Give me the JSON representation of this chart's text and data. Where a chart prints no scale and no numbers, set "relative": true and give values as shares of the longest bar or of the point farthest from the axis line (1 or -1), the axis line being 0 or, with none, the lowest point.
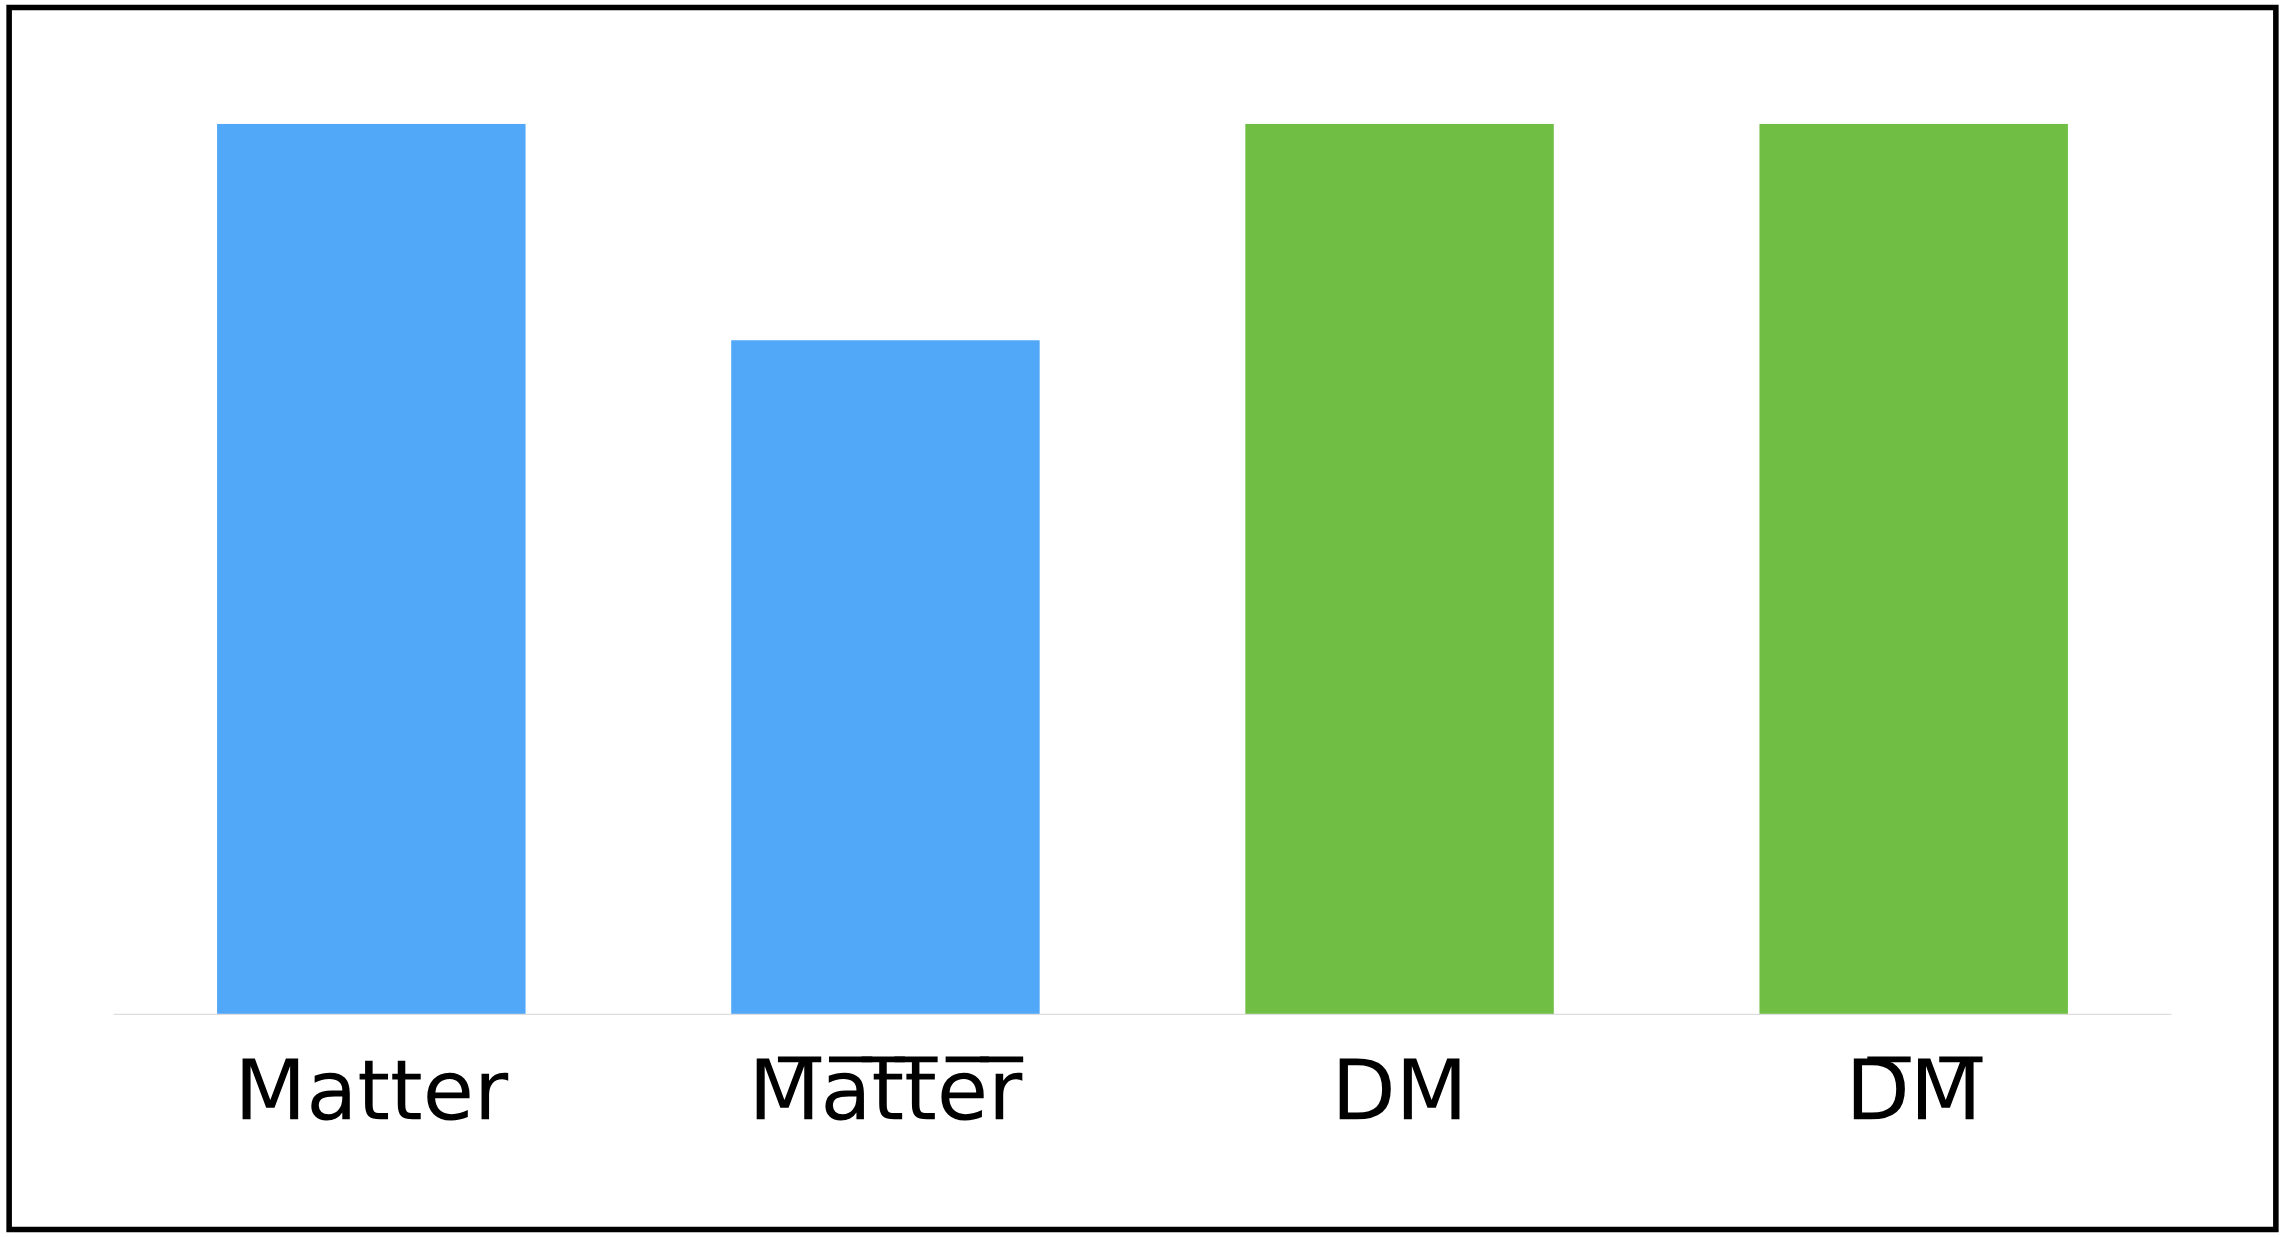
{
  "chart_data": {
    "type": "bar",
    "relative": true,
    "categories": [
      "Matter",
      "M̅a̅t̅t̅e̅r̅",
      "DM",
      "D̅M̅"
    ],
    "values": [
      1,
      0.757,
      1,
      1
    ],
    "colors": [
      "#52a8f8",
      "#52a8f8",
      "#70bf44",
      "#70bf44"
    ],
    "grid": false
  }
}
